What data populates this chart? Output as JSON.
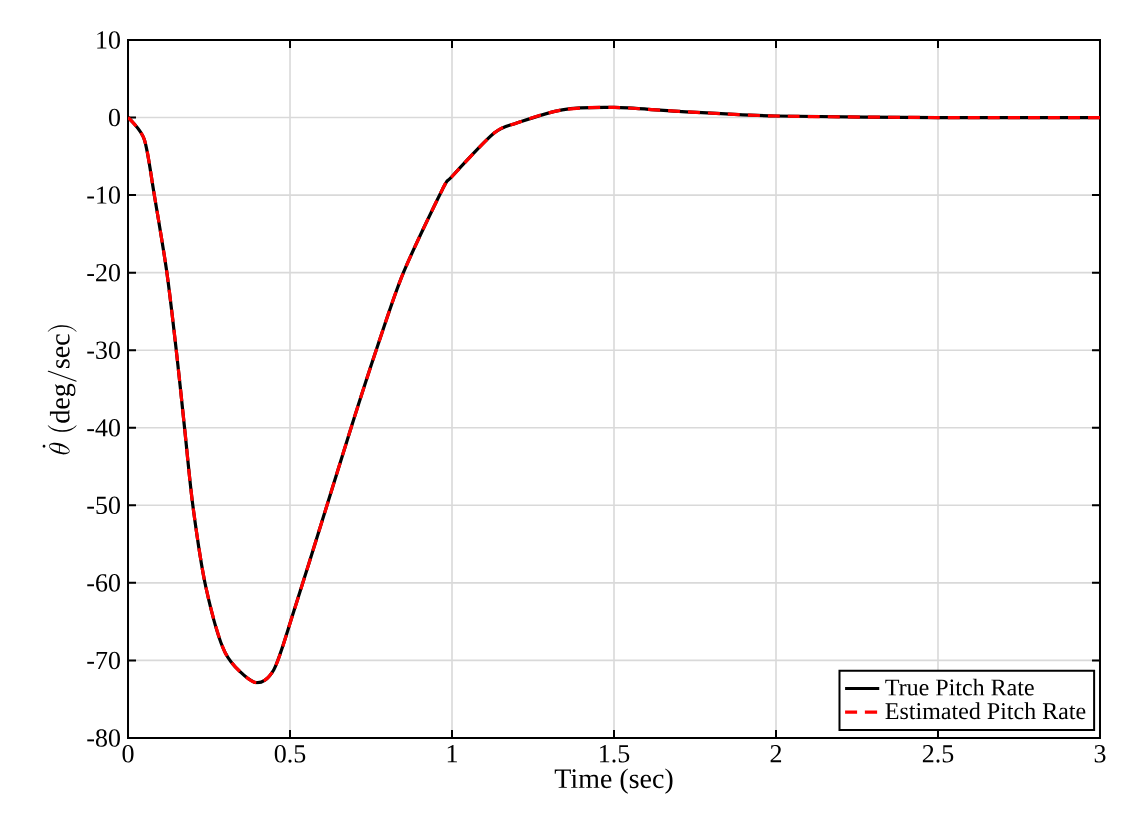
{
  "chart_data": {
    "type": "line",
    "xlabel": "Time (sec)",
    "ylabel": "\\dot{\\theta}\\ \\mathrm{(deg/sec)}",
    "x": [
      0,
      0.05,
      0.08,
      0.12,
      0.15,
      0.174,
      0.2,
      0.24,
      0.3,
      0.39,
      0.45,
      0.51,
      0.6,
      0.69,
      0.77,
      0.85,
      0.97,
      1.0,
      1.13,
      1.2,
      1.34,
      1.5,
      1.7,
      2.0,
      2.5,
      3.0
    ],
    "series": [
      {
        "name": "True Pitch Rate",
        "color": "#000000",
        "line_style": "solid",
        "values": [
          0,
          -2.8,
          -9.7,
          -20,
          -30.4,
          -39.8,
          -50,
          -60.5,
          -69,
          -72.8,
          -71.2,
          -63.9,
          -51.9,
          -39.8,
          -29.5,
          -20,
          -9.3,
          -7.6,
          -2,
          -0.7,
          1.0,
          1.3,
          0.8,
          0.2,
          0,
          0
        ]
      },
      {
        "name": "Estimated Pitch Rate",
        "color": "#ff0000",
        "line_style": "dashed",
        "values": [
          0,
          -2.8,
          -9.7,
          -20,
          -30.4,
          -39.8,
          -50,
          -60.5,
          -69,
          -72.8,
          -71.2,
          -63.9,
          -51.9,
          -39.8,
          -29.5,
          -20,
          -9.3,
          -7.6,
          -2,
          -0.7,
          1.0,
          1.3,
          0.8,
          0.2,
          0,
          0
        ]
      }
    ],
    "xlim": [
      0,
      3
    ],
    "ylim": [
      -80,
      10
    ],
    "xticks": [
      0,
      0.5,
      1,
      1.5,
      2,
      2.5,
      3
    ],
    "yticks": [
      -80,
      -70,
      -60,
      -50,
      -40,
      -30,
      -20,
      -10,
      0,
      10
    ],
    "grid": true,
    "legend": "bottom right",
    "marker": "none"
  }
}
